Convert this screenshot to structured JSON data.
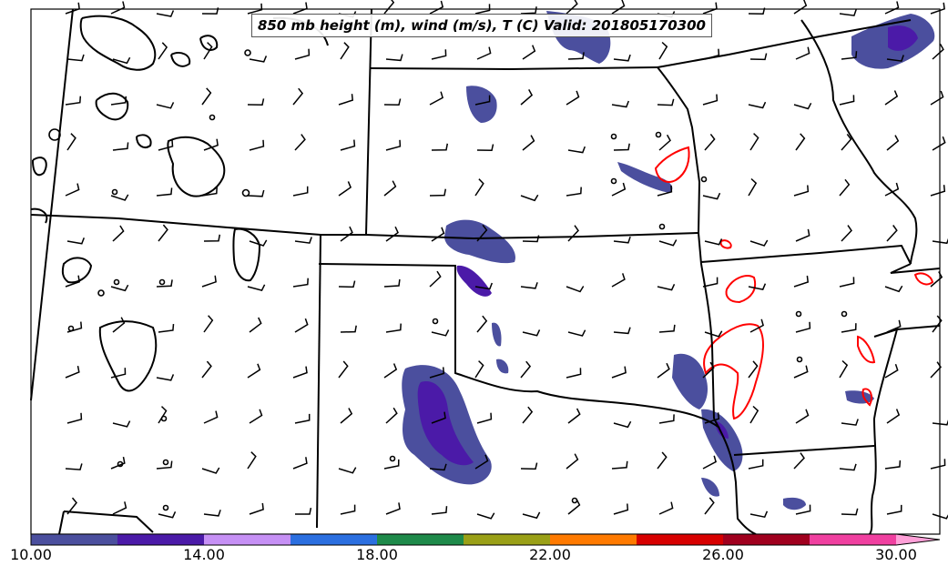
{
  "map": {
    "title": "850 mb height (m), wind (m/s), T (C) Valid: 201805170300"
  },
  "colorbar": {
    "tick_labels": [
      "10.00",
      "14.00",
      "18.00",
      "22.00",
      "26.00",
      "30.00"
    ],
    "colors": [
      "#4b4f9e",
      "#4b1aa8",
      "#c690f5",
      "#2b6fe0",
      "#1e8a4a",
      "#9aa017",
      "#ff7a00",
      "#d70000",
      "#a0001e",
      "#f040a0",
      "#ffa0d8"
    ]
  },
  "colors": {
    "height_contour": "#000000",
    "temperature_contour": "#ff0000",
    "state_borders": "#000000"
  }
}
